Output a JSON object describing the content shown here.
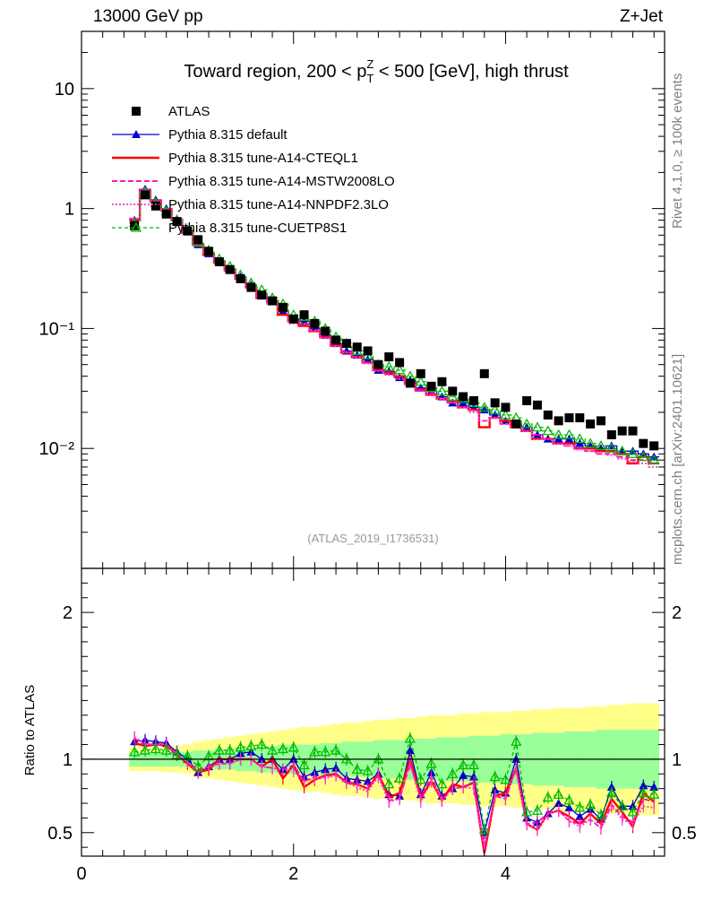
{
  "header": {
    "left": "13000 GeV pp",
    "right": "Z+Jet"
  },
  "side_labels": {
    "rivet": "Rivet 4.1.0, ≥ 100k events",
    "mcplots": "mcplots.cern.ch [arXiv:2401.10621]"
  },
  "colors": {
    "data": "#000000",
    "default": "#0000cc",
    "cteql1": "#ff0000",
    "mstw": "#ff00aa",
    "nnpdf": "#ff33cc",
    "cuetp": "#00bb00",
    "band_outer": "#ffff88",
    "band_inner": "#99ff99"
  },
  "chart_data": [
    {
      "type": "line",
      "panel": "main",
      "title": "Toward region, 200 < p_T^Z < 500 [GeV], high thrust",
      "title_parts": {
        "pre": "Toward region, 200 < p",
        "sup": "Z",
        "sub": "T",
        "post": " < 500 [GeV], high thrust"
      },
      "watermark": "(ATLAS_2019_I1736531)",
      "yscale": "log",
      "xlim": [
        0,
        5.5
      ],
      "ylim": [
        0.001,
        30
      ],
      "y_tick_labels": [
        "10⁻²",
        "10⁻¹",
        "1",
        "10"
      ],
      "legend": [
        "ATLAS",
        "Pythia 8.315 default",
        "Pythia 8.315 tune-A14-CTEQL1",
        "Pythia 8.315 tune-A14-MSTW2008LO",
        "Pythia 8.315 tune-A14-NNPDF2.3LO",
        "Pythia 8.315 tune-CUETP8S1"
      ],
      "x": [
        0.5,
        0.6,
        0.7,
        0.8,
        0.9,
        1.0,
        1.1,
        1.2,
        1.3,
        1.4,
        1.5,
        1.6,
        1.7,
        1.8,
        1.9,
        2.0,
        2.1,
        2.2,
        2.3,
        2.4,
        2.5,
        2.6,
        2.7,
        2.8,
        2.9,
        3.0,
        3.1,
        3.2,
        3.3,
        3.4,
        3.5,
        3.6,
        3.7,
        3.8,
        3.9,
        4.0,
        4.1,
        4.2,
        4.3,
        4.4,
        4.5,
        4.6,
        4.7,
        4.8,
        4.9,
        5.0,
        5.1,
        5.2,
        5.3,
        5.4
      ],
      "series": [
        {
          "name": "ATLAS",
          "values": [
            0.72,
            1.3,
            1.05,
            0.9,
            0.78,
            0.65,
            0.55,
            0.44,
            0.36,
            0.31,
            0.26,
            0.22,
            0.19,
            0.17,
            0.15,
            0.12,
            0.13,
            0.11,
            0.095,
            0.08,
            0.075,
            0.07,
            0.065,
            0.05,
            0.058,
            0.052,
            0.035,
            0.042,
            0.033,
            0.036,
            0.03,
            0.027,
            0.025,
            0.042,
            0.024,
            0.022,
            0.016,
            0.025,
            0.023,
            0.019,
            0.017,
            0.018,
            0.018,
            0.016,
            0.017,
            0.013,
            0.014,
            0.014,
            0.011,
            0.0105
          ]
        },
        {
          "name": "Pythia 8.315 default",
          "values": [
            0.8,
            1.45,
            1.18,
            1.0,
            0.82,
            0.65,
            0.5,
            0.42,
            0.36,
            0.31,
            0.27,
            0.23,
            0.19,
            0.17,
            0.14,
            0.12,
            0.115,
            0.1,
            0.088,
            0.075,
            0.065,
            0.06,
            0.055,
            0.045,
            0.044,
            0.039,
            0.037,
            0.032,
            0.03,
            0.027,
            0.024,
            0.024,
            0.022,
            0.021,
            0.019,
            0.017,
            0.016,
            0.015,
            0.013,
            0.012,
            0.012,
            0.012,
            0.011,
            0.0105,
            0.01,
            0.0105,
            0.0095,
            0.0095,
            0.009,
            0.0085
          ]
        },
        {
          "name": "Pythia 8.315 tune-A14-CTEQL1",
          "values": [
            0.8,
            1.42,
            1.16,
            0.99,
            0.8,
            0.63,
            0.5,
            0.41,
            0.36,
            0.31,
            0.26,
            0.22,
            0.18,
            0.17,
            0.13,
            0.115,
            0.105,
            0.095,
            0.085,
            0.072,
            0.063,
            0.058,
            0.052,
            0.045,
            0.043,
            0.04,
            0.035,
            0.031,
            0.028,
            0.026,
            0.025,
            0.022,
            0.021,
            0.015,
            0.018,
            0.017,
            0.015,
            0.014,
            0.012,
            0.012,
            0.011,
            0.011,
            0.01,
            0.01,
            0.0095,
            0.0095,
            0.009,
            0.0075,
            0.0085,
            0.0075
          ]
        },
        {
          "name": "Pythia 8.315 tune-A14-MSTW2008LO",
          "values": [
            0.82,
            1.43,
            1.15,
            0.98,
            0.8,
            0.64,
            0.51,
            0.42,
            0.35,
            0.3,
            0.26,
            0.22,
            0.18,
            0.16,
            0.14,
            0.115,
            0.11,
            0.097,
            0.084,
            0.072,
            0.064,
            0.058,
            0.052,
            0.045,
            0.042,
            0.038,
            0.034,
            0.031,
            0.029,
            0.026,
            0.024,
            0.022,
            0.021,
            0.017,
            0.018,
            0.016,
            0.015,
            0.014,
            0.013,
            0.012,
            0.011,
            0.0105,
            0.01,
            0.0095,
            0.009,
            0.009,
            0.0085,
            0.008,
            0.008,
            0.0075
          ]
        },
        {
          "name": "Pythia 8.315 tune-A14-NNPDF2.3LO",
          "values": [
            0.83,
            1.44,
            1.16,
            0.99,
            0.81,
            0.64,
            0.5,
            0.42,
            0.35,
            0.3,
            0.26,
            0.22,
            0.18,
            0.16,
            0.14,
            0.11,
            0.11,
            0.096,
            0.083,
            0.071,
            0.063,
            0.057,
            0.051,
            0.044,
            0.041,
            0.038,
            0.034,
            0.03,
            0.028,
            0.026,
            0.024,
            0.022,
            0.02,
            0.017,
            0.018,
            0.016,
            0.015,
            0.014,
            0.012,
            0.012,
            0.011,
            0.0105,
            0.0098,
            0.0095,
            0.009,
            0.0088,
            0.0082,
            0.0078,
            0.0075,
            0.007
          ]
        },
        {
          "name": "Pythia 8.315 tune-CUETP8S1",
          "values": [
            0.76,
            1.38,
            1.12,
            0.95,
            0.8,
            0.66,
            0.52,
            0.45,
            0.38,
            0.33,
            0.28,
            0.24,
            0.21,
            0.18,
            0.16,
            0.13,
            0.125,
            0.115,
            0.1,
            0.085,
            0.075,
            0.065,
            0.06,
            0.05,
            0.048,
            0.045,
            0.04,
            0.036,
            0.032,
            0.03,
            0.027,
            0.026,
            0.024,
            0.022,
            0.021,
            0.019,
            0.018,
            0.016,
            0.015,
            0.014,
            0.013,
            0.013,
            0.012,
            0.011,
            0.0105,
            0.01,
            0.0095,
            0.009,
            0.0085,
            0.008
          ]
        }
      ]
    },
    {
      "type": "line",
      "panel": "ratio",
      "ylabel": "Ratio to ATLAS",
      "xlim": [
        0,
        5.5
      ],
      "ylim": [
        0.34,
        2.3
      ],
      "x_tick_labels": [
        "0",
        "2",
        "4"
      ],
      "y_tick_labels": [
        "0.5",
        "1",
        "2"
      ],
      "reference": 1,
      "band_inner": [
        0.05,
        0.05,
        0.05,
        0.05,
        0.05,
        0.05,
        0.06,
        0.06,
        0.07,
        0.07,
        0.08,
        0.08,
        0.09,
        0.09,
        0.1,
        0.1,
        0.1,
        0.1,
        0.11,
        0.11,
        0.12,
        0.12,
        0.12,
        0.13,
        0.13,
        0.13,
        0.14,
        0.14,
        0.14,
        0.15,
        0.15,
        0.15,
        0.16,
        0.16,
        0.16,
        0.17,
        0.17,
        0.17,
        0.18,
        0.18,
        0.18,
        0.19,
        0.19,
        0.19,
        0.2,
        0.2,
        0.2,
        0.2,
        0.2,
        0.2
      ],
      "band_outer": [
        0.08,
        0.08,
        0.08,
        0.09,
        0.09,
        0.1,
        0.12,
        0.13,
        0.14,
        0.15,
        0.16,
        0.17,
        0.18,
        0.19,
        0.2,
        0.21,
        0.22,
        0.22,
        0.23,
        0.24,
        0.25,
        0.25,
        0.26,
        0.27,
        0.27,
        0.28,
        0.28,
        0.29,
        0.3,
        0.3,
        0.3,
        0.31,
        0.31,
        0.32,
        0.32,
        0.32,
        0.33,
        0.33,
        0.34,
        0.34,
        0.35,
        0.35,
        0.35,
        0.36,
        0.36,
        0.37,
        0.37,
        0.38,
        0.38,
        0.38
      ],
      "series": [
        {
          "name": "Pythia 8.315 default",
          "values": [
            1.12,
            1.13,
            1.12,
            1.11,
            1.05,
            1.0,
            0.91,
            0.95,
            1.0,
            1.0,
            1.04,
            1.05,
            1.0,
            1.0,
            0.93,
            1.0,
            0.88,
            0.91,
            0.93,
            0.94,
            0.87,
            0.86,
            0.85,
            0.9,
            0.76,
            0.75,
            1.06,
            0.76,
            0.91,
            0.75,
            0.8,
            0.89,
            0.88,
            0.5,
            0.79,
            0.77,
            1.0,
            0.6,
            0.57,
            0.63,
            0.7,
            0.67,
            0.61,
            0.66,
            0.59,
            0.81,
            0.68,
            0.68,
            0.82,
            0.81
          ]
        },
        {
          "name": "Pythia 8.315 tune-A14-CTEQL1",
          "values": [
            1.11,
            1.09,
            1.1,
            1.1,
            1.03,
            0.97,
            0.91,
            0.93,
            1.0,
            1.0,
            1.0,
            1.0,
            0.95,
            1.0,
            0.87,
            0.96,
            0.81,
            0.86,
            0.89,
            0.9,
            0.84,
            0.83,
            0.8,
            0.9,
            0.74,
            0.77,
            1.0,
            0.74,
            0.85,
            0.72,
            0.83,
            0.81,
            0.84,
            0.36,
            0.75,
            0.77,
            0.94,
            0.56,
            0.52,
            0.63,
            0.65,
            0.61,
            0.56,
            0.63,
            0.56,
            0.73,
            0.64,
            0.54,
            0.77,
            0.71
          ]
        },
        {
          "name": "Pythia 8.315 tune-A14-MSTW2008LO",
          "values": [
            1.14,
            1.1,
            1.1,
            1.09,
            1.03,
            0.98,
            0.93,
            0.95,
            0.97,
            0.97,
            1.0,
            1.0,
            0.95,
            0.94,
            0.93,
            0.96,
            0.85,
            0.88,
            0.88,
            0.9,
            0.85,
            0.83,
            0.8,
            0.9,
            0.72,
            0.73,
            0.97,
            0.74,
            0.88,
            0.72,
            0.8,
            0.81,
            0.84,
            0.4,
            0.75,
            0.73,
            0.94,
            0.56,
            0.57,
            0.63,
            0.65,
            0.58,
            0.56,
            0.59,
            0.53,
            0.69,
            0.61,
            0.57,
            0.73,
            0.71
          ]
        },
        {
          "name": "Pythia 8.315 tune-A14-NNPDF2.3LO",
          "values": [
            1.15,
            1.11,
            1.1,
            1.1,
            1.04,
            0.98,
            0.91,
            0.95,
            0.97,
            0.97,
            1.0,
            1.0,
            0.95,
            0.94,
            0.93,
            0.92,
            0.85,
            0.87,
            0.87,
            0.89,
            0.84,
            0.81,
            0.78,
            0.88,
            0.71,
            0.73,
            0.97,
            0.71,
            0.85,
            0.72,
            0.8,
            0.81,
            0.8,
            0.4,
            0.75,
            0.73,
            0.94,
            0.56,
            0.52,
            0.63,
            0.65,
            0.58,
            0.54,
            0.59,
            0.53,
            0.68,
            0.59,
            0.56,
            0.68,
            0.67
          ]
        },
        {
          "name": "Pythia 8.315 tune-CUETP8S1",
          "values": [
            1.05,
            1.06,
            1.07,
            1.06,
            1.03,
            1.02,
            0.95,
            1.02,
            1.06,
            1.06,
            1.08,
            1.09,
            1.1,
            1.06,
            1.07,
            1.08,
            0.96,
            1.05,
            1.05,
            1.06,
            1.0,
            0.93,
            0.92,
            1.0,
            0.83,
            0.87,
            1.14,
            0.86,
            0.97,
            0.83,
            0.9,
            0.96,
            0.96,
            0.52,
            0.88,
            0.86,
            1.12,
            0.64,
            0.65,
            0.74,
            0.76,
            0.72,
            0.67,
            0.69,
            0.62,
            0.77,
            0.68,
            0.64,
            0.77,
            0.76
          ]
        }
      ]
    }
  ]
}
